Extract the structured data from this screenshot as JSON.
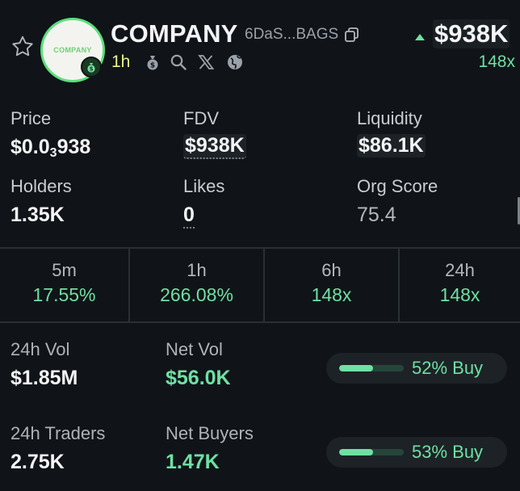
{
  "header": {
    "logo_text": "COMPANY",
    "token_name": "COMPANY",
    "address_short": "6DaS...BAGS",
    "age": "1h",
    "price_summary": "$938K",
    "multiplier": "148x",
    "icons": [
      "star-icon",
      "money-bag-icon",
      "search-icon",
      "x-icon",
      "globe-icon",
      "copy-icon",
      "up-arrow-icon"
    ]
  },
  "stats": {
    "price": {
      "label": "Price",
      "prefix": "$0.0",
      "sub": "3",
      "suffix": "938"
    },
    "fdv": {
      "label": "FDV",
      "value": "$938K"
    },
    "liquidity": {
      "label": "Liquidity",
      "value": "$86.1K"
    },
    "holders": {
      "label": "Holders",
      "value": "1.35K"
    },
    "likes": {
      "label": "Likes",
      "value": "0"
    },
    "org_score": {
      "label": "Org Score",
      "value": "75.4"
    }
  },
  "timeframes": [
    {
      "label": "5m",
      "value": "17.55%"
    },
    {
      "label": "1h",
      "value": "266.08%"
    },
    {
      "label": "6h",
      "value": "148x"
    },
    {
      "label": "24h",
      "value": "148x"
    }
  ],
  "volume": {
    "vol_label": "24h Vol",
    "vol_value": "$1.85M",
    "net_vol_label": "Net Vol",
    "net_vol_value": "$56.0K",
    "buy_pct_text": "52% Buy",
    "buy_fraction": 0.52
  },
  "traders": {
    "traders_label": "24h Traders",
    "traders_value": "2.75K",
    "net_buyers_label": "Net Buyers",
    "net_buyers_value": "1.47K",
    "buy_pct_text": "53% Buy",
    "buy_fraction": 0.53
  },
  "colors": {
    "background": "#101418",
    "accent_green": "#6fe0a3",
    "age_yellow": "#e9f28a",
    "logo_ring": "#5be07b"
  }
}
